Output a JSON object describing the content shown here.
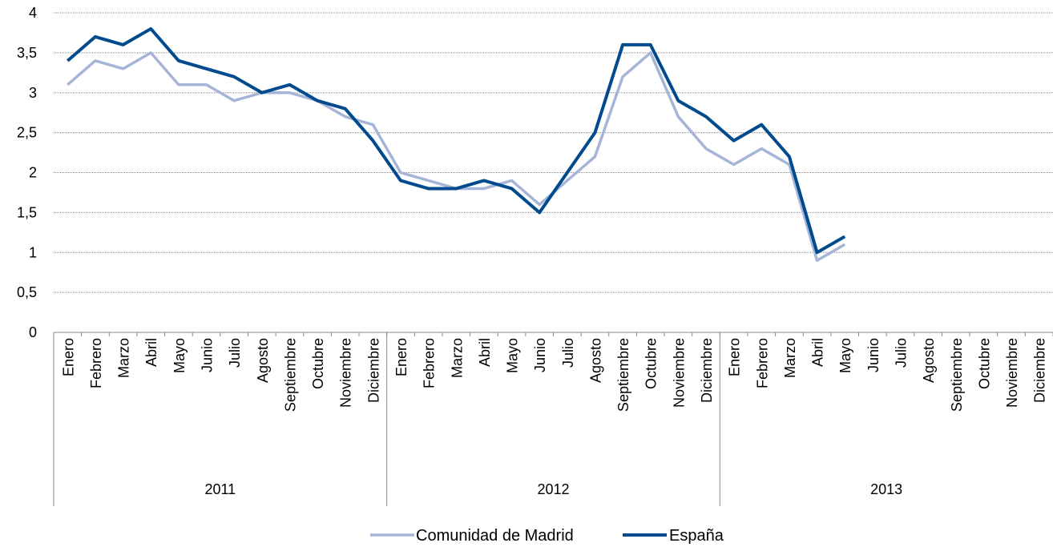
{
  "chart_data": {
    "type": "line",
    "title": "",
    "xlabel": "",
    "ylabel": "",
    "ylim": [
      0,
      4
    ],
    "yticks": [
      "0",
      "0,5",
      "1",
      "1,5",
      "2",
      "2,5",
      "3",
      "3,5",
      "4"
    ],
    "grid": true,
    "legend_position": "bottom",
    "groups": [
      {
        "label": "2011",
        "months": [
          "Enero",
          "Febrero",
          "Marzo",
          "Abril",
          "Mayo",
          "Junio",
          "Julio",
          "Agosto",
          "Septiembre",
          "Octubre",
          "Noviembre",
          "Diciembre"
        ]
      },
      {
        "label": "2012",
        "months": [
          "Enero",
          "Febrero",
          "Marzo",
          "Abril",
          "Mayo",
          "Junio",
          "Julio",
          "Agosto",
          "Septiembre",
          "Octubre",
          "Noviembre",
          "Diciembre"
        ]
      },
      {
        "label": "2013",
        "months": [
          "Enero",
          "Febrero",
          "Marzo",
          "Abril",
          "Mayo",
          "Junio",
          "Julio",
          "Agosto",
          "Septiembre",
          "Octubre",
          "Noviembre",
          "Diciembre"
        ]
      }
    ],
    "series": [
      {
        "name": "Comunidad de Madrid",
        "color": "#a6b4d8",
        "values": [
          3.1,
          3.4,
          3.3,
          3.5,
          3.1,
          3.1,
          2.9,
          3.0,
          3.0,
          2.9,
          2.7,
          2.6,
          2.0,
          1.9,
          1.8,
          1.8,
          1.9,
          1.6,
          1.9,
          2.2,
          3.2,
          3.5,
          2.7,
          2.3,
          2.1,
          2.3,
          2.1,
          0.9,
          1.1,
          null,
          null,
          null,
          null,
          null,
          null,
          null
        ]
      },
      {
        "name": "España",
        "color": "#004a8d",
        "values": [
          3.4,
          3.7,
          3.6,
          3.8,
          3.4,
          3.3,
          3.2,
          3.0,
          3.1,
          2.9,
          2.8,
          2.4,
          1.9,
          1.8,
          1.8,
          1.9,
          1.8,
          1.5,
          2.0,
          2.5,
          3.6,
          3.6,
          2.9,
          2.7,
          2.4,
          2.6,
          2.2,
          1.0,
          1.2,
          null,
          null,
          null,
          null,
          null,
          null,
          null
        ]
      }
    ]
  }
}
